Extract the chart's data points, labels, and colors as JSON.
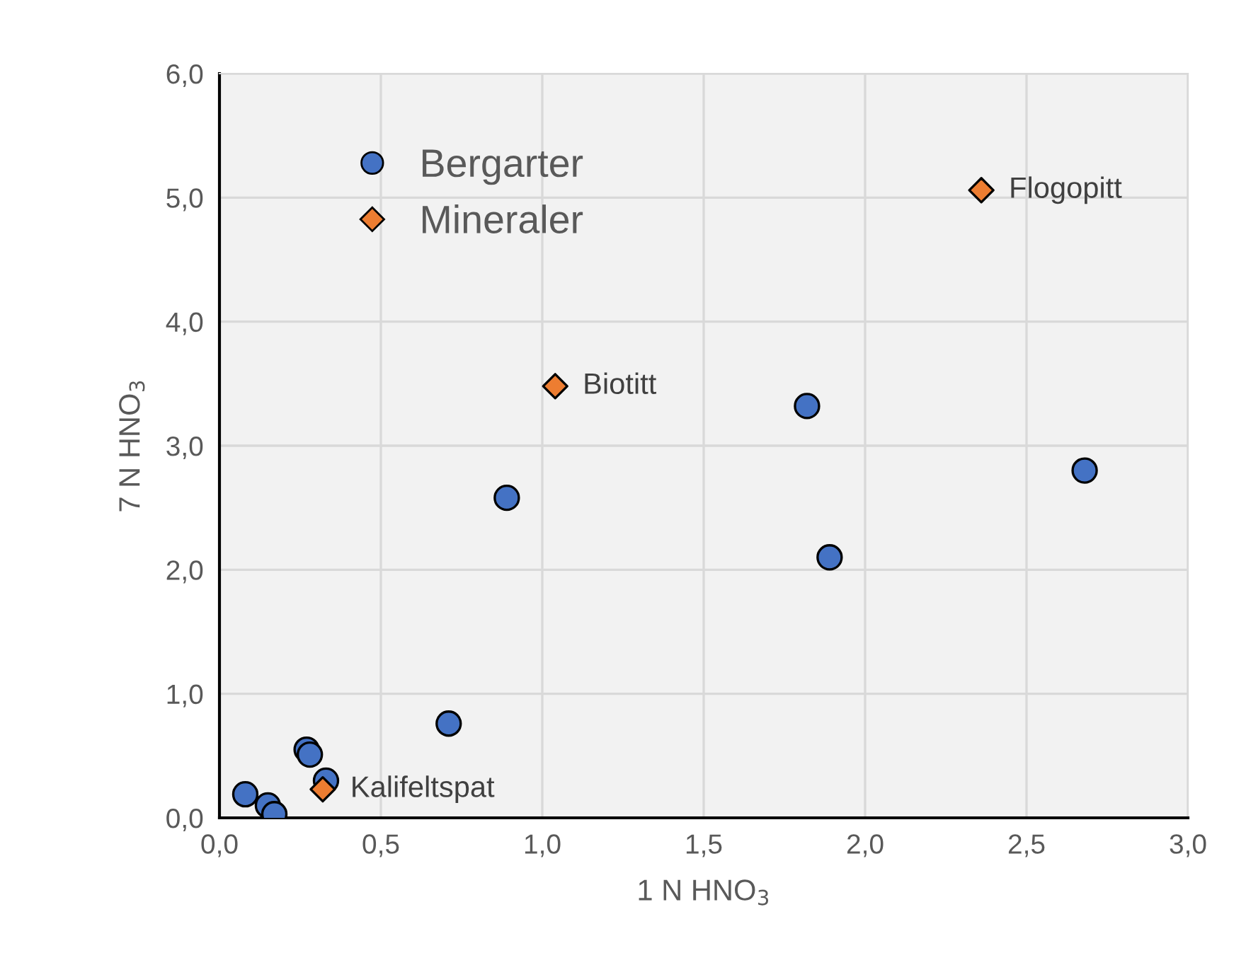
{
  "chart_data": {
    "type": "scatter",
    "xlabel": "1 N HNO$_{3}$",
    "ylabel": "7 N HNO$_{3}$",
    "xlim": [
      0,
      3
    ],
    "ylim": [
      0,
      6
    ],
    "xticks": [
      {
        "value": 0,
        "label": "0,0"
      },
      {
        "value": 0.5,
        "label": "0,5"
      },
      {
        "value": 1,
        "label": "1,0"
      },
      {
        "value": 1.5,
        "label": "1,5"
      },
      {
        "value": 2,
        "label": "2,0"
      },
      {
        "value": 2.5,
        "label": "2,5"
      },
      {
        "value": 3,
        "label": "3,0"
      }
    ],
    "yticks": [
      {
        "value": 0,
        "label": "0,0"
      },
      {
        "value": 1,
        "label": "1,0"
      },
      {
        "value": 2,
        "label": "2,0"
      },
      {
        "value": 3,
        "label": "3,0"
      },
      {
        "value": 4,
        "label": "4,0"
      },
      {
        "value": 5,
        "label": "5,0"
      },
      {
        "value": 6,
        "label": "6,0"
      }
    ],
    "grid": true,
    "legend": "top left",
    "series": [
      {
        "name": "Bergarter",
        "color": "#4472c4",
        "marker": "circle",
        "x": [
          0.08,
          0.15,
          0.17,
          0.27,
          0.28,
          0.33,
          0.71,
          0.89,
          1.82,
          1.89,
          2.68
        ],
        "values": [
          0.19,
          0.1,
          0.03,
          0.55,
          0.51,
          0.3,
          0.76,
          2.58,
          3.32,
          2.1,
          2.8
        ]
      },
      {
        "name": "Mineraler",
        "color": "#ed7d31",
        "marker": "diamond",
        "x": [
          0.32,
          1.04,
          2.36
        ],
        "values": [
          0.23,
          3.48,
          5.06
        ]
      }
    ],
    "annotations": [
      {
        "text": "Kalifeltspat",
        "x": 0.32,
        "y": 0.23
      },
      {
        "text": "Biotitt",
        "x": 1.04,
        "y": 3.48
      },
      {
        "text": "Flogopitt",
        "x": 2.36,
        "y": 5.06
      }
    ]
  }
}
